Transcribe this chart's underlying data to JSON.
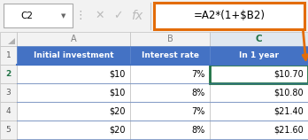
{
  "formula_bar": {
    "cell_ref": "C2",
    "formula": "=A2*(1+$B2)"
  },
  "col_letters": [
    "A",
    "B",
    "C"
  ],
  "headers": [
    "Initial investment",
    "Interest rate",
    "In 1 year"
  ],
  "rows": [
    [
      "$10",
      "7%",
      "$10.70"
    ],
    [
      "$10",
      "8%",
      "$10.80"
    ],
    [
      "$20",
      "7%",
      "$21.40"
    ],
    [
      "$20",
      "8%",
      "$21.60"
    ]
  ],
  "row_nums": [
    "1",
    "2",
    "3",
    "4",
    "5"
  ],
  "header_bg": "#4472C4",
  "header_fg": "#FFFFFF",
  "col_letter_fg": "#C07030",
  "col_letter_fg_normal": "#808080",
  "selected_col_letter_fg": "#217346",
  "row_num_fg_selected": "#217346",
  "row_num_fg": "#595959",
  "formula_box_border": "#E36C09",
  "selected_cell_border": "#217346",
  "toolbar_bg": "#F2F2F2",
  "grid_line_color": "#C0C0C0",
  "arrow_color": "#E36C09",
  "row_header_bg": "#F2F2F2",
  "col_header_bg": "#F2F2F2",
  "selected_col_header_bg": "#E0E8F0",
  "row_sep_color": "#4472C4",
  "cell_ref_box_color": "#AAAAAA",
  "toolbar_separator_color": "#CCCCCC",
  "dots_color": "#AAAAAA"
}
